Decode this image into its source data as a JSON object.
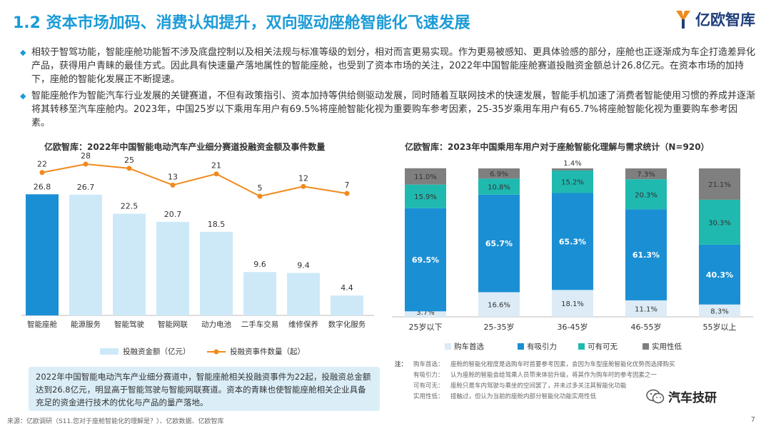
{
  "page": {
    "title": "1.2 资本市场加码、消费认知提升，双向驱动座舱智能化飞速发展",
    "logo_text": "亿欧智库",
    "bullets": [
      "相较于智驾功能，智能座舱功能暂不涉及底盘控制以及相关法规与标准等级的划分，相对而言更易实现。作为更易被感知、更具体验感的部分，座舱也正逐渐成为车企打造差异化产品，获得用户青睐的最佳方式。因此具有快速量产落地属性的智能座舱，也受到了资本市场的关注，2022年中国智能座舱赛道投融资金额总计26.8亿元。在资本市场的加持下，座舱的智能化发展正不断提速。",
      "智能座舱作为智能汽车行业发展的关键赛道，不但有政策指引、资本加持等供给侧驱动发展，同时随着互联网技术的快速发展，智能手机加速了消费者智能使用习惯的养成并逐渐将其转移至汽车座舱内。2023年，中国25岁以下乘用车用户有69.5%将座舱智能化视为重要购车参考因素，25-35岁乘用车用户有65.7%将座舱智能化视为重要购车参考因素。"
    ],
    "summary_box": "2022年中国智能电动汽车产业细分赛道中，智能座舱相关投融资事件为22起，投融资总金额达到26.8亿元，明显高于智能驾驶与智能网联赛道。资本的青睐也使智能座舱相关企业具备充足的资金进行技术的优化与产品的量产落地。",
    "notes_lead": "注：",
    "notes": [
      {
        "k": "购车首选：",
        "v": "座舱的智能化程度是选购车时首要参考因素，会因为车型座舱智能化优势而选择购买"
      },
      {
        "k": "有吸引力：",
        "v": "认为座舱的智能会给驾乘人员带来体验升级，将其作为购车时的参考因素之一"
      },
      {
        "k": "可有可无：",
        "v": "座舱只是车内驾驶与乘坐的空间罢了，并未过多关注其智能化功能"
      },
      {
        "k": "实用性低：",
        "v": "接触过，但认为当前的座舱内部分智能化功能实用性低"
      }
    ],
    "source": "来源：亿欧调研（S11.您对于座舱智能化的理解是？）、亿欧数据、亿欧智库",
    "page_number": "7",
    "watermark": "汽车技研",
    "colors": {
      "brand": "#1a9bd7",
      "bar_dark": "#1a8fd4",
      "bar_light": "#cde9f8",
      "line": "#f08a1c",
      "seg_first": "#dcebf5",
      "seg_attract": "#1a8fd4",
      "seg_optional": "#1fb9b0",
      "seg_low": "#7f7f7f"
    }
  },
  "chart_data": [
    {
      "type": "bar",
      "title": "亿欧智库：2022年中国智能电动汽车产业细分赛道投融资金额及事件数量",
      "categories": [
        "智能座舱",
        "能源服务",
        "智能驾驶",
        "智能网联",
        "动力电池",
        "二手车交易",
        "维修保养",
        "数字化服务"
      ],
      "series": [
        {
          "name": "投融资金额（亿元）",
          "type": "bar",
          "values": [
            26.8,
            26.7,
            22.5,
            20.7,
            18.5,
            9.6,
            9.4,
            4.4
          ]
        },
        {
          "name": "投融资事件数量（起）",
          "type": "line",
          "values": [
            22,
            28,
            25,
            13,
            21,
            5,
            12,
            7
          ]
        }
      ],
      "legend": "bottom"
    },
    {
      "type": "bar",
      "stacked": true,
      "title": "亿欧智库：2023年中国乘用车用户对于座舱智能化理解与需求统计（N=920）",
      "categories": [
        "25岁以下",
        "25-35岁",
        "36-45岁",
        "46-55岁",
        "55岁以上"
      ],
      "series": [
        {
          "name": "购车首选",
          "values": [
            3.7,
            16.6,
            18.1,
            11.1,
            8.3
          ]
        },
        {
          "name": "有吸引力",
          "values": [
            69.5,
            65.7,
            65.3,
            61.3,
            40.3
          ]
        },
        {
          "name": "可有可无",
          "values": [
            15.9,
            10.8,
            15.2,
            20.3,
            30.3
          ]
        },
        {
          "name": "实用性低",
          "values": [
            11.0,
            6.9,
            1.4,
            7.3,
            21.1
          ]
        }
      ],
      "unit": "%",
      "legend": "bottom"
    }
  ]
}
